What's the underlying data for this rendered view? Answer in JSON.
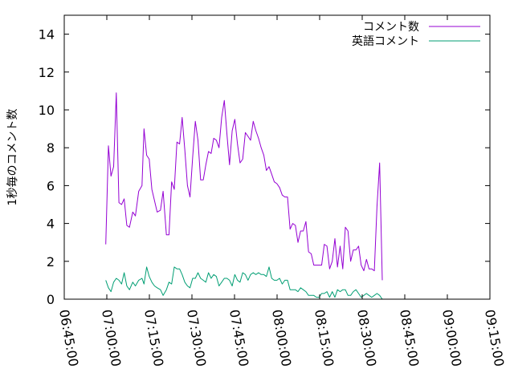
{
  "chart_data": {
    "type": "line",
    "title": "",
    "xlabel": "",
    "ylabel": "1秒毎のコメント数",
    "ylim": [
      0,
      15
    ],
    "xlim": [
      "06:45:00",
      "09:15:00"
    ],
    "yticks": [
      "0",
      "2",
      "4",
      "6",
      "8",
      "10",
      "12",
      "14"
    ],
    "xticks": [
      "06:45:00",
      "07:00:00",
      "07:15:00",
      "07:30:00",
      "07:45:00",
      "08:00:00",
      "08:15:00",
      "08:30:00",
      "08:45:00",
      "09:00:00",
      "09:15:00"
    ],
    "grid": false,
    "legend_position": "top-right",
    "series": [
      {
        "name": "コメント数",
        "color": "#9400d3",
        "points": [
          [
            "06:59:38",
            2.9
          ],
          [
            "07:00:34",
            8.1
          ],
          [
            "07:01:29",
            6.5
          ],
          [
            "07:02:25",
            7.0
          ],
          [
            "07:03:21",
            10.9
          ],
          [
            "07:04:16",
            5.1
          ],
          [
            "07:05:12",
            5.0
          ],
          [
            "07:06:07",
            5.3
          ],
          [
            "07:07:03",
            3.9
          ],
          [
            "07:07:59",
            3.8
          ],
          [
            "07:09:09",
            4.6
          ],
          [
            "07:10:05",
            4.4
          ],
          [
            "07:11:14",
            5.7
          ],
          [
            "07:12:24",
            6.0
          ],
          [
            "07:13:06",
            9.0
          ],
          [
            "07:14:02",
            7.6
          ],
          [
            "07:14:57",
            7.4
          ],
          [
            "07:15:53",
            5.8
          ],
          [
            "07:16:49",
            5.2
          ],
          [
            "07:17:44",
            4.6
          ],
          [
            "07:18:54",
            4.7
          ],
          [
            "07:19:50",
            5.7
          ],
          [
            "07:21:00",
            3.4
          ],
          [
            "07:21:55",
            3.4
          ],
          [
            "07:22:51",
            6.2
          ],
          [
            "07:23:46",
            5.8
          ],
          [
            "07:24:42",
            8.3
          ],
          [
            "07:25:38",
            8.2
          ],
          [
            "07:26:33",
            9.6
          ],
          [
            "07:27:29",
            7.9
          ],
          [
            "07:28:25",
            6.0
          ],
          [
            "07:29:20",
            5.4
          ],
          [
            "07:30:16",
            7.5
          ],
          [
            "07:31:12",
            9.4
          ],
          [
            "07:32:07",
            8.4
          ],
          [
            "07:33:03",
            6.3
          ],
          [
            "07:33:59",
            6.3
          ],
          [
            "07:34:54",
            7.1
          ],
          [
            "07:35:50",
            7.8
          ],
          [
            "07:36:46",
            7.7
          ],
          [
            "07:37:41",
            8.5
          ],
          [
            "07:38:37",
            8.4
          ],
          [
            "07:39:33",
            8.0
          ],
          [
            "07:40:28",
            9.6
          ],
          [
            "07:41:24",
            10.5
          ],
          [
            "07:42:20",
            8.7
          ],
          [
            "07:43:15",
            7.1
          ],
          [
            "07:44:11",
            8.9
          ],
          [
            "07:45:07",
            9.5
          ],
          [
            "07:46:02",
            8.2
          ],
          [
            "07:46:58",
            7.2
          ],
          [
            "07:47:54",
            7.4
          ],
          [
            "07:48:49",
            8.8
          ],
          [
            "07:49:45",
            8.6
          ],
          [
            "07:50:40",
            8.4
          ],
          [
            "07:51:36",
            9.4
          ],
          [
            "07:52:32",
            8.9
          ],
          [
            "07:53:27",
            8.5
          ],
          [
            "07:54:23",
            8.0
          ],
          [
            "07:55:19",
            7.6
          ],
          [
            "07:56:14",
            6.8
          ],
          [
            "07:57:10",
            7.0
          ],
          [
            "07:58:06",
            6.6
          ],
          [
            "07:59:01",
            6.2
          ],
          [
            "07:59:57",
            6.1
          ],
          [
            "08:00:53",
            5.9
          ],
          [
            "08:01:48",
            5.5
          ],
          [
            "08:02:44",
            5.4
          ],
          [
            "08:03:40",
            5.4
          ],
          [
            "08:04:35",
            3.7
          ],
          [
            "08:05:31",
            4.0
          ],
          [
            "08:06:27",
            3.9
          ],
          [
            "08:07:22",
            3.0
          ],
          [
            "08:08:18",
            3.6
          ],
          [
            "08:09:14",
            3.6
          ],
          [
            "08:10:09",
            4.1
          ],
          [
            "08:11:05",
            2.5
          ],
          [
            "08:12:01",
            2.4
          ],
          [
            "08:12:56",
            1.8
          ],
          [
            "08:13:52",
            1.8
          ],
          [
            "08:14:48",
            1.8
          ],
          [
            "08:15:43",
            1.8
          ],
          [
            "08:16:39",
            2.9
          ],
          [
            "08:17:35",
            2.8
          ],
          [
            "08:18:30",
            1.6
          ],
          [
            "08:19:26",
            2.0
          ],
          [
            "08:20:22",
            3.2
          ],
          [
            "08:21:17",
            1.7
          ],
          [
            "08:22:13",
            2.8
          ],
          [
            "08:23:09",
            1.6
          ],
          [
            "08:24:04",
            3.8
          ],
          [
            "08:25:00",
            3.6
          ],
          [
            "08:25:56",
            2.0
          ],
          [
            "08:26:51",
            2.6
          ],
          [
            "08:27:47",
            2.6
          ],
          [
            "08:28:43",
            2.8
          ],
          [
            "08:29:38",
            1.8
          ],
          [
            "08:30:34",
            1.5
          ],
          [
            "08:31:30",
            2.1
          ],
          [
            "08:32:25",
            1.6
          ],
          [
            "08:33:21",
            1.6
          ],
          [
            "08:34:17",
            1.5
          ],
          [
            "08:35:12",
            4.9
          ],
          [
            "08:36:08",
            7.2
          ],
          [
            "08:37:04",
            1.0
          ]
        ]
      },
      {
        "name": "英語コメント",
        "color": "#009e73",
        "points": [
          [
            "06:59:38",
            1.0
          ],
          [
            "07:00:34",
            0.6
          ],
          [
            "07:01:29",
            0.4
          ],
          [
            "07:02:25",
            0.9
          ],
          [
            "07:03:21",
            1.1
          ],
          [
            "07:04:16",
            1.0
          ],
          [
            "07:05:12",
            0.8
          ],
          [
            "07:06:07",
            1.4
          ],
          [
            "07:07:03",
            0.7
          ],
          [
            "07:07:59",
            0.5
          ],
          [
            "07:09:09",
            0.9
          ],
          [
            "07:10:05",
            0.7
          ],
          [
            "07:11:14",
            1.0
          ],
          [
            "07:12:24",
            1.1
          ],
          [
            "07:13:06",
            0.8
          ],
          [
            "07:14:02",
            1.7
          ],
          [
            "07:14:57",
            1.2
          ],
          [
            "07:15:53",
            0.9
          ],
          [
            "07:16:49",
            0.7
          ],
          [
            "07:17:44",
            0.6
          ],
          [
            "07:18:54",
            0.5
          ],
          [
            "07:19:50",
            0.2
          ],
          [
            "07:21:00",
            0.5
          ],
          [
            "07:21:55",
            0.9
          ],
          [
            "07:22:51",
            0.8
          ],
          [
            "07:23:46",
            1.7
          ],
          [
            "07:24:42",
            1.6
          ],
          [
            "07:25:38",
            1.6
          ],
          [
            "07:26:33",
            1.3
          ],
          [
            "07:27:29",
            0.9
          ],
          [
            "07:28:25",
            0.7
          ],
          [
            "07:29:20",
            0.6
          ],
          [
            "07:30:16",
            1.1
          ],
          [
            "07:31:12",
            1.1
          ],
          [
            "07:32:07",
            1.4
          ],
          [
            "07:33:03",
            1.1
          ],
          [
            "07:33:59",
            1.0
          ],
          [
            "07:34:54",
            0.9
          ],
          [
            "07:35:50",
            1.4
          ],
          [
            "07:36:46",
            1.1
          ],
          [
            "07:37:41",
            1.3
          ],
          [
            "07:38:37",
            1.2
          ],
          [
            "07:39:33",
            0.7
          ],
          [
            "07:40:28",
            0.9
          ],
          [
            "07:41:24",
            1.1
          ],
          [
            "07:42:20",
            1.1
          ],
          [
            "07:43:15",
            1.0
          ],
          [
            "07:44:11",
            0.7
          ],
          [
            "07:45:07",
            1.3
          ],
          [
            "07:46:02",
            1.0
          ],
          [
            "07:46:58",
            0.9
          ],
          [
            "07:47:54",
            1.4
          ],
          [
            "07:48:49",
            1.3
          ],
          [
            "07:49:45",
            1.0
          ],
          [
            "07:50:40",
            1.3
          ],
          [
            "07:51:36",
            1.4
          ],
          [
            "07:52:32",
            1.3
          ],
          [
            "07:53:27",
            1.4
          ],
          [
            "07:54:23",
            1.3
          ],
          [
            "07:55:19",
            1.3
          ],
          [
            "07:56:14",
            1.2
          ],
          [
            "07:57:10",
            1.7
          ],
          [
            "07:58:06",
            1.1
          ],
          [
            "07:59:01",
            1.0
          ],
          [
            "07:59:57",
            1.0
          ],
          [
            "08:00:53",
            1.1
          ],
          [
            "08:01:48",
            0.8
          ],
          [
            "08:02:44",
            1.0
          ],
          [
            "08:03:40",
            1.0
          ],
          [
            "08:04:35",
            0.5
          ],
          [
            "08:05:31",
            0.5
          ],
          [
            "08:06:27",
            0.5
          ],
          [
            "08:07:22",
            0.4
          ],
          [
            "08:08:18",
            0.6
          ],
          [
            "08:09:14",
            0.5
          ],
          [
            "08:10:09",
            0.4
          ],
          [
            "08:11:05",
            0.2
          ],
          [
            "08:12:01",
            0.2
          ],
          [
            "08:12:56",
            0.2
          ],
          [
            "08:13:52",
            0.1
          ],
          [
            "08:14:48",
            0.1
          ],
          [
            "08:15:43",
            0.3
          ],
          [
            "08:16:39",
            0.3
          ],
          [
            "08:17:35",
            0.4
          ],
          [
            "08:18:30",
            0.1
          ],
          [
            "08:19:26",
            0.4
          ],
          [
            "08:20:22",
            0.1
          ],
          [
            "08:21:17",
            0.5
          ],
          [
            "08:22:13",
            0.4
          ],
          [
            "08:23:09",
            0.5
          ],
          [
            "08:24:04",
            0.5
          ],
          [
            "08:25:00",
            0.2
          ],
          [
            "08:25:56",
            0.2
          ],
          [
            "08:26:51",
            0.4
          ],
          [
            "08:27:47",
            0.5
          ],
          [
            "08:28:43",
            0.3
          ],
          [
            "08:29:38",
            0.1
          ],
          [
            "08:30:34",
            0.2
          ],
          [
            "08:31:30",
            0.3
          ],
          [
            "08:32:25",
            0.2
          ],
          [
            "08:33:21",
            0.1
          ],
          [
            "08:34:17",
            0.2
          ],
          [
            "08:35:12",
            0.3
          ],
          [
            "08:36:08",
            0.2
          ],
          [
            "08:37:04",
            0.0
          ]
        ]
      }
    ]
  }
}
